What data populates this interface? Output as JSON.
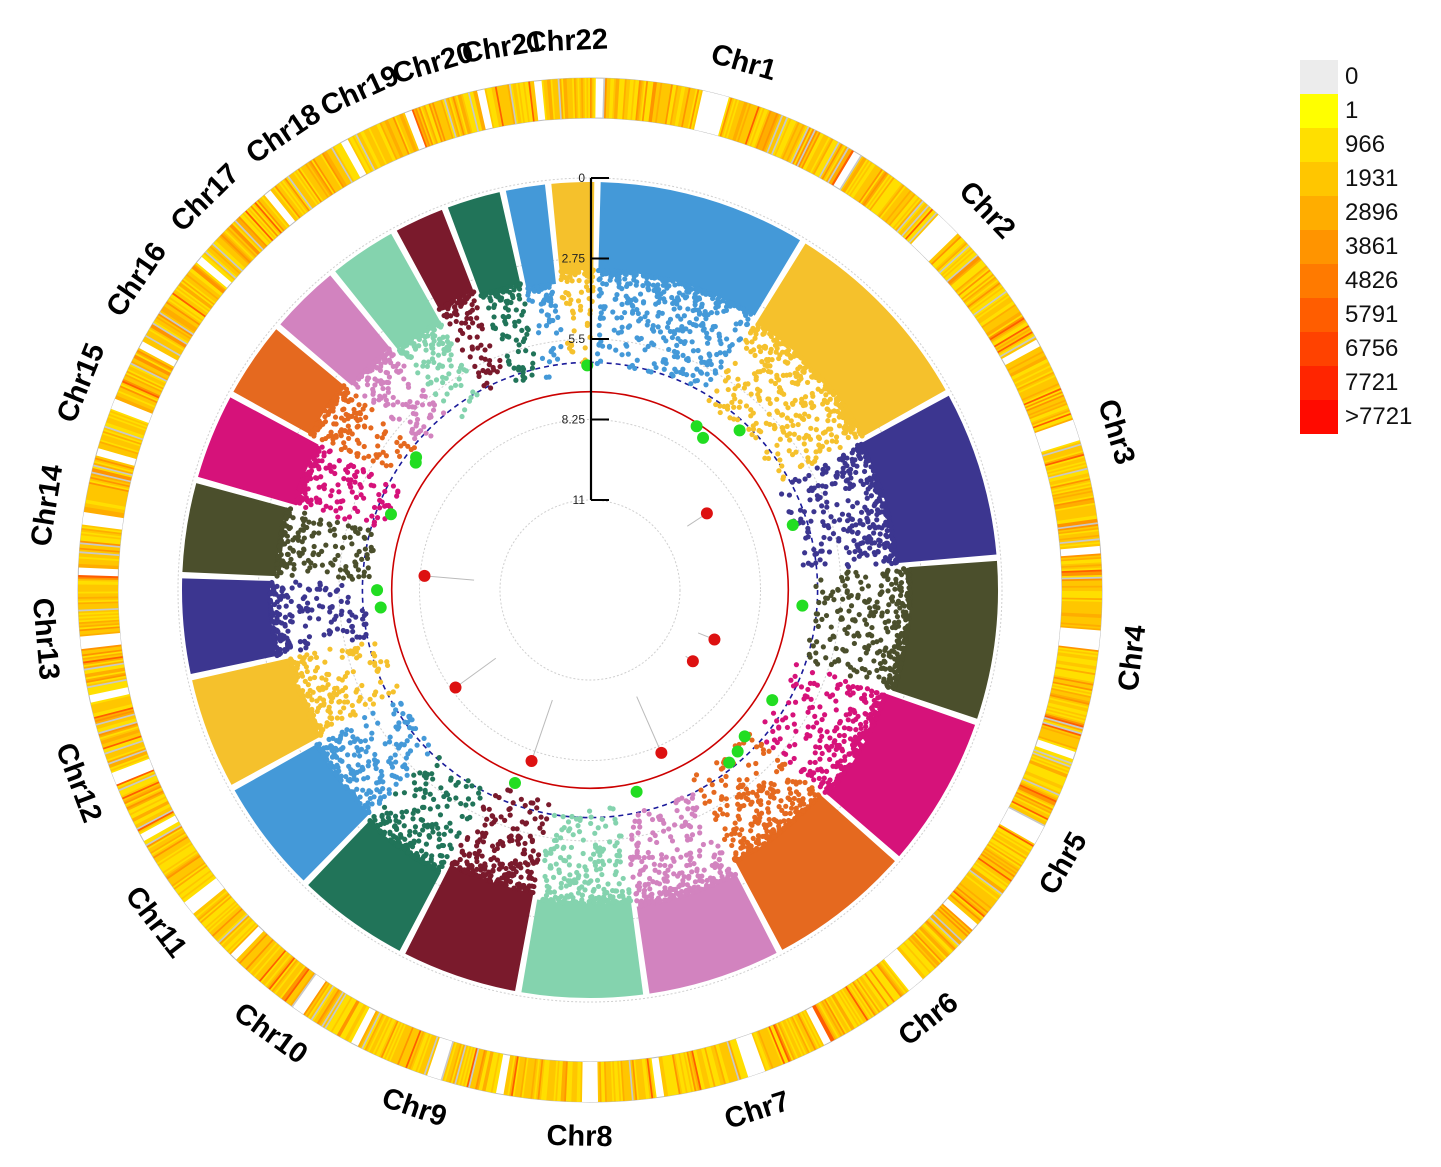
{
  "chart_data": {
    "type": "circular-manhattan",
    "title": "",
    "chromosomes": [
      {
        "name": "Chr1",
        "length": 249,
        "color": "#4499d8"
      },
      {
        "name": "Chr2",
        "length": 243,
        "color": "#f5c12c"
      },
      {
        "name": "Chr3",
        "length": 198,
        "color": "#3c3690"
      },
      {
        "name": "Chr4",
        "length": 190,
        "color": "#4b4f2c"
      },
      {
        "name": "Chr5",
        "length": 181,
        "color": "#d6127a"
      },
      {
        "name": "Chr6",
        "length": 171,
        "color": "#e5691f"
      },
      {
        "name": "Chr7",
        "length": 159,
        "color": "#d283bf"
      },
      {
        "name": "Chr8",
        "length": 145,
        "color": "#84d3ae"
      },
      {
        "name": "Chr9",
        "length": 138,
        "color": "#7a1a2c"
      },
      {
        "name": "Chr10",
        "length": 134,
        "color": "#217459"
      },
      {
        "name": "Chr11",
        "length": 135,
        "color": "#4499d8"
      },
      {
        "name": "Chr12",
        "length": 133,
        "color": "#f5c12c"
      },
      {
        "name": "Chr13",
        "length": 114,
        "color": "#3c3690"
      },
      {
        "name": "Chr14",
        "length": 107,
        "color": "#4b4f2c"
      },
      {
        "name": "Chr15",
        "length": 102,
        "color": "#d6127a"
      },
      {
        "name": "Chr16",
        "length": 90,
        "color": "#e5691f"
      },
      {
        "name": "Chr17",
        "length": 83,
        "color": "#d283bf"
      },
      {
        "name": "Chr18",
        "length": 80,
        "color": "#84d3ae"
      },
      {
        "name": "Chr19",
        "length": 59,
        "color": "#7a1a2c"
      },
      {
        "name": "Chr20",
        "length": 64,
        "color": "#217459"
      },
      {
        "name": "Chr21",
        "length": 47,
        "color": "#4499d8"
      },
      {
        "name": "Chr22",
        "length": 51,
        "color": "#f5c12c"
      }
    ],
    "radial_axis": {
      "ticks": [
        0,
        2.75,
        5.5,
        8.25,
        11
      ],
      "tick_labels": [
        "0",
        "2.75",
        "5.5",
        "8.25",
        "11"
      ],
      "range": [
        0,
        11
      ],
      "direction": "inward"
    },
    "threshold_lines": [
      {
        "value": 7.3,
        "color": "#cc0000",
        "style": "solid"
      },
      {
        "value": 6.3,
        "color": "#1a1a9a",
        "style": "dashed"
      }
    ],
    "significant_points": [
      {
        "chr": "Chr2",
        "pos": 10,
        "value": 7.4,
        "color": "#22dd22"
      },
      {
        "chr": "Chr2",
        "pos": 40,
        "value": 7.6,
        "color": "#22dd22"
      },
      {
        "chr": "Chr2",
        "pos": 95,
        "value": 6.6,
        "color": "#22dd22"
      },
      {
        "chr": "Chr2",
        "pos": 210,
        "value": 9.3,
        "color": "#dd1111"
      },
      {
        "chr": "Chr3",
        "pos": 90,
        "value": 6.8,
        "color": "#22dd22"
      },
      {
        "chr": "Chr4",
        "pos": 70,
        "value": 6.8,
        "color": "#22dd22"
      },
      {
        "chr": "Chr5",
        "pos": 20,
        "value": 9.5,
        "color": "#dd1111"
      },
      {
        "chr": "Chr5",
        "pos": 130,
        "value": 9.8,
        "color": "#dd1111"
      },
      {
        "chr": "Chr5",
        "pos": 100,
        "value": 6.8,
        "color": "#22dd22"
      },
      {
        "chr": "Chr6",
        "pos": 15,
        "value": 6.8,
        "color": "#22dd22"
      },
      {
        "chr": "Chr6",
        "pos": 50,
        "value": 6.6,
        "color": "#22dd22"
      },
      {
        "chr": "Chr6",
        "pos": 80,
        "value": 6.5,
        "color": "#22dd22"
      },
      {
        "chr": "Chr7",
        "pos": 30,
        "value": 8.0,
        "color": "#dd1111"
      },
      {
        "chr": "Chr7",
        "pos": 120,
        "value": 7.0,
        "color": "#22dd22"
      },
      {
        "chr": "Chr9",
        "pos": 70,
        "value": 7.9,
        "color": "#dd1111"
      },
      {
        "chr": "Chr9",
        "pos": 90,
        "value": 7.0,
        "color": "#22dd22"
      },
      {
        "chr": "Chr11",
        "pos": 80,
        "value": 8.4,
        "color": "#dd1111"
      },
      {
        "chr": "Chr13",
        "pos": 60,
        "value": 6.9,
        "color": "#22dd22"
      },
      {
        "chr": "Chr13",
        "pos": 100,
        "value": 6.8,
        "color": "#22dd22"
      },
      {
        "chr": "Chr14",
        "pos": 20,
        "value": 8.4,
        "color": "#dd1111"
      },
      {
        "chr": "Chr15",
        "pos": 40,
        "value": 6.8,
        "color": "#22dd22"
      },
      {
        "chr": "Chr16",
        "pos": 60,
        "value": 6.7,
        "color": "#22dd22"
      },
      {
        "chr": "Chr16",
        "pos": 70,
        "value": 6.6,
        "color": "#22dd22"
      },
      {
        "chr": "Chr22",
        "pos": 40,
        "value": 6.4,
        "color": "#22dd22"
      }
    ],
    "density_legend": {
      "title": "",
      "entries": [
        {
          "label": "0",
          "color": "#ececec"
        },
        {
          "label": "1",
          "color": "#ffff00"
        },
        {
          "label": "966",
          "color": "#ffdf00"
        },
        {
          "label": "1931",
          "color": "#ffc600"
        },
        {
          "label": "2896",
          "color": "#ffad00"
        },
        {
          "label": "3861",
          "color": "#ff9400"
        },
        {
          "label": "4826",
          "color": "#ff7a00"
        },
        {
          "label": "5791",
          "color": "#ff5d00"
        },
        {
          "label": "6756",
          "color": "#ff4200"
        },
        {
          "label": "7721",
          "color": "#ff2500"
        },
        {
          "label": ">7721",
          "color": "#ff0a00"
        }
      ]
    }
  }
}
